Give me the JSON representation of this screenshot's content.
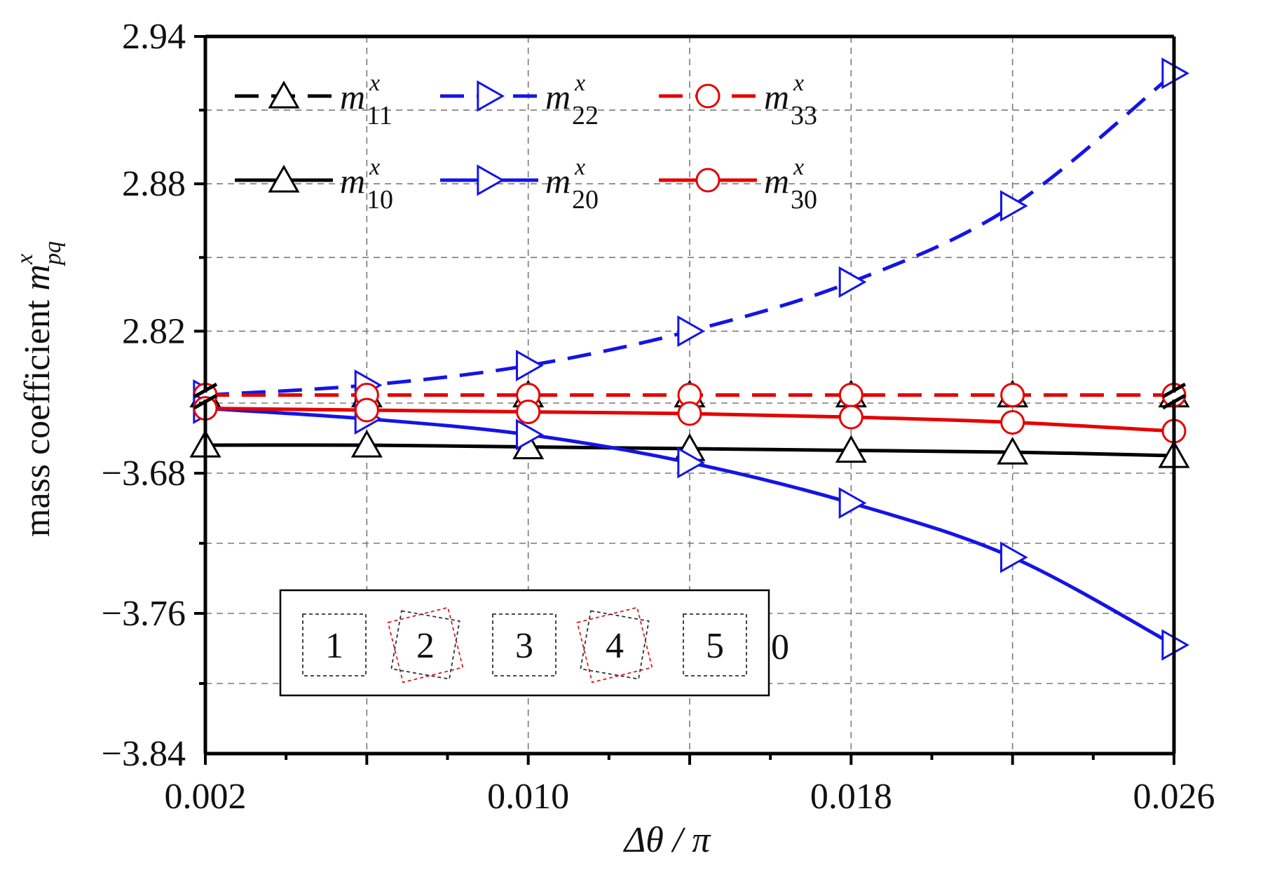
{
  "chart_data": {
    "type": "line",
    "xlabel": "Δθ / π",
    "ylabel_prefix": "mass coefficient ",
    "ylabel_symbol": "m",
    "ylabel_sup": "x",
    "ylabel_sub": "pq",
    "x": [
      0.002,
      0.006,
      0.01,
      0.014,
      0.018,
      0.022,
      0.026
    ],
    "x_ticks": [
      "0.002",
      "0.010",
      "0.018",
      "0.026"
    ],
    "xlim": [
      0.002,
      0.026
    ],
    "y_upper_ticks": [
      "2.94",
      "2.88",
      "2.82"
    ],
    "y_lower_ticks": [
      "−3.68",
      "−3.76",
      "−3.84"
    ],
    "ylim_upper": [
      2.795,
      2.94
    ],
    "ylim_lower": [
      -3.84,
      -3.638
    ],
    "broken_axis": true,
    "grid": true,
    "legend_position": "top-left",
    "series": [
      {
        "name": "m11",
        "sym": "m",
        "sup": "x",
        "sub": "11",
        "segment": "upper",
        "color": "#000000",
        "dashed": true,
        "marker": "triangle-up",
        "values": [
          2.794,
          2.794,
          2.794,
          2.794,
          2.794,
          2.794,
          2.794
        ]
      },
      {
        "name": "m22",
        "sym": "m",
        "sup": "x",
        "sub": "22",
        "segment": "upper",
        "color": "#1414e6",
        "dashed": true,
        "marker": "triangle-right",
        "values": [
          2.794,
          2.798,
          2.806,
          2.82,
          2.84,
          2.871,
          2.925
        ]
      },
      {
        "name": "m33",
        "sym": "m",
        "sup": "x",
        "sub": "33",
        "segment": "upper",
        "color": "#e60000",
        "dashed": true,
        "marker": "circle",
        "values": [
          2.794,
          2.794,
          2.794,
          2.794,
          2.794,
          2.794,
          2.794
        ]
      },
      {
        "name": "m10",
        "sym": "m",
        "sup": "x",
        "sub": "10",
        "segment": "lower",
        "color": "#000000",
        "dashed": false,
        "marker": "triangle-up",
        "values": [
          -3.664,
          -3.664,
          -3.665,
          -3.666,
          -3.667,
          -3.668,
          -3.67
        ]
      },
      {
        "name": "m20",
        "sym": "m",
        "sup": "x",
        "sub": "20",
        "segment": "lower",
        "color": "#1414e6",
        "dashed": false,
        "marker": "triangle-right",
        "values": [
          -3.643,
          -3.649,
          -3.658,
          -3.674,
          -3.697,
          -3.728,
          -3.778
        ]
      },
      {
        "name": "m30",
        "sym": "m",
        "sup": "x",
        "sub": "30",
        "segment": "lower",
        "color": "#e60000",
        "dashed": false,
        "marker": "circle",
        "values": [
          -3.643,
          -3.644,
          -3.645,
          -3.646,
          -3.648,
          -3.651,
          -3.656
        ]
      }
    ],
    "inset_boxes": [
      "1",
      "2",
      "3",
      "4",
      "5"
    ],
    "inset_trailing_text": "0"
  }
}
